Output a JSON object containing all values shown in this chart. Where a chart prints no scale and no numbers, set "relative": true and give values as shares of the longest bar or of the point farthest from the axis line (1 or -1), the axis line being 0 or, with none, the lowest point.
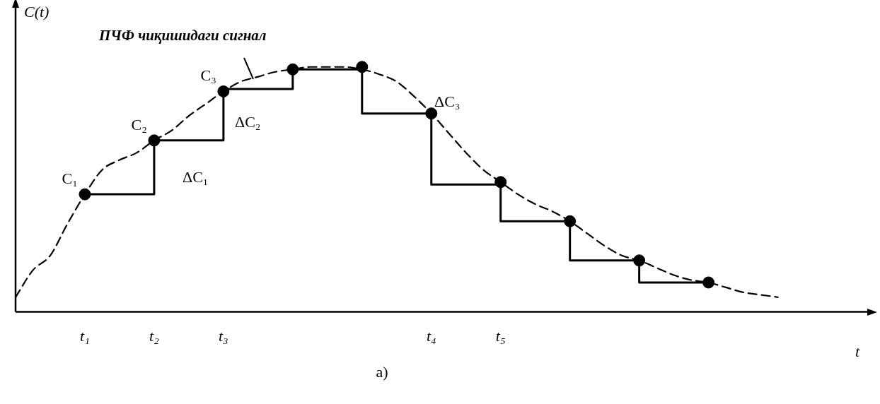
{
  "chart_data": {
    "type": "line",
    "relative": true,
    "xlabel": "t",
    "ylabel": "C(t)",
    "tick_labels": "x",
    "grid": false,
    "legend": false,
    "categories": [
      null,
      null,
      null,
      null,
      "t₁",
      null,
      null,
      null,
      "t₂",
      null,
      null,
      null,
      "t₃",
      null,
      null,
      null,
      null,
      null,
      null,
      null,
      null,
      null,
      null,
      null,
      "t₄",
      null,
      null,
      null,
      "t₅",
      null,
      null,
      null,
      null,
      null,
      null,
      null,
      null,
      null,
      null,
      null,
      null,
      null,
      null,
      null,
      null,
      null,
      null,
      null,
      null,
      null
    ],
    "series": [
      {
        "type": "line",
        "line_style": "dashed",
        "color": "#000000",
        "values": [
          0.06,
          0.17,
          0.23,
          0.36,
          0.48,
          0.58,
          0.62,
          0.65,
          0.7,
          0.74,
          0.8,
          0.85,
          0.9,
          0.94,
          0.96,
          0.98,
          0.99,
          1.0,
          1.0,
          1.0,
          0.99,
          0.97,
          0.94,
          0.88,
          0.81,
          0.73,
          0.65,
          0.58,
          0.53,
          0.48,
          0.44,
          0.41,
          0.37,
          0.32,
          0.27,
          0.23,
          0.21,
          0.18,
          0.15,
          0.13,
          0.12,
          0.1,
          0.08,
          0.07,
          0.06,
          null,
          null,
          null,
          null,
          null
        ]
      },
      {
        "type": "step",
        "line_style": "solid",
        "color": "#000000",
        "values": [
          null,
          null,
          null,
          null,
          0.48,
          null,
          null,
          null,
          0.7,
          null,
          null,
          null,
          0.91,
          null,
          null,
          null,
          0.99,
          null,
          null,
          null,
          0.81,
          null,
          null,
          null,
          0.52,
          null,
          null,
          null,
          0.37,
          null,
          null,
          null,
          0.21,
          null,
          null,
          null,
          0.12,
          null,
          null,
          null,
          0.12,
          null,
          null,
          null,
          null,
          null,
          null,
          null,
          null,
          null
        ]
      },
      {
        "type": "scatter",
        "marker": "circle",
        "color": "#000000",
        "values": [
          null,
          null,
          null,
          null,
          0.48,
          null,
          null,
          null,
          0.7,
          null,
          null,
          null,
          0.9,
          null,
          null,
          null,
          0.99,
          null,
          null,
          null,
          1.0,
          null,
          null,
          null,
          0.81,
          null,
          null,
          null,
          0.53,
          null,
          null,
          null,
          0.37,
          null,
          null,
          null,
          0.21,
          null,
          null,
          null,
          0.12,
          null,
          null,
          null,
          null,
          null,
          null,
          null,
          null,
          null
        ]
      }
    ],
    "annotations": [
      "ПЧФ чиқишидаги сигнал",
      {
        "text": "C₁",
        "x": "t₁",
        "y": 0.48
      },
      {
        "text": "C₂",
        "x": "t₂",
        "y": 0.7
      },
      {
        "text": "C₃",
        "x": "t₃",
        "y": 0.9
      },
      "ΔC₁",
      "ΔC₂",
      "ΔC₃",
      "а)"
    ]
  }
}
